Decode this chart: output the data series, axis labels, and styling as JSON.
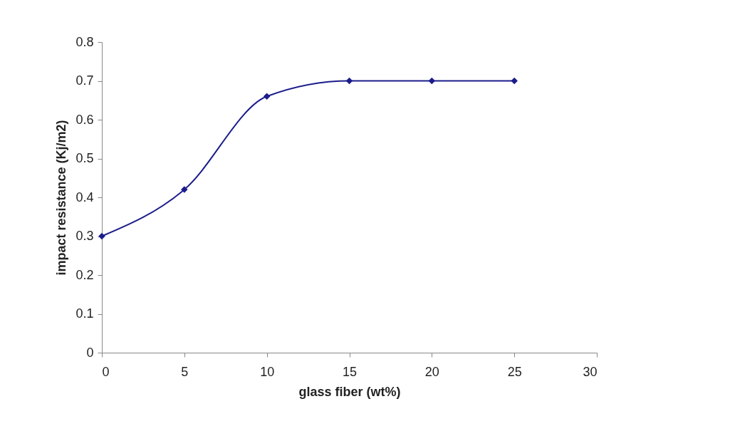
{
  "chart_data": {
    "type": "line",
    "xlabel": "glass fiber (wt%)",
    "ylabel": "impact resistance (Kj/m2)",
    "x": [
      0,
      5,
      10,
      15,
      20,
      25
    ],
    "series": [
      {
        "color": "#1c1c8c",
        "values": [
          0.3,
          0.42,
          0.66,
          0.7,
          0.7,
          0.7
        ]
      }
    ],
    "xlim": [
      0,
      30
    ],
    "xticks": [
      0,
      5,
      10,
      15,
      20,
      25,
      30
    ],
    "ylim": [
      0,
      0.8
    ],
    "yticks": [
      0,
      0.1,
      0.2,
      0.3,
      0.4,
      0.5,
      0.6,
      0.7,
      0.8
    ],
    "grid": false,
    "marker": "diamond",
    "line_style": "solid"
  }
}
